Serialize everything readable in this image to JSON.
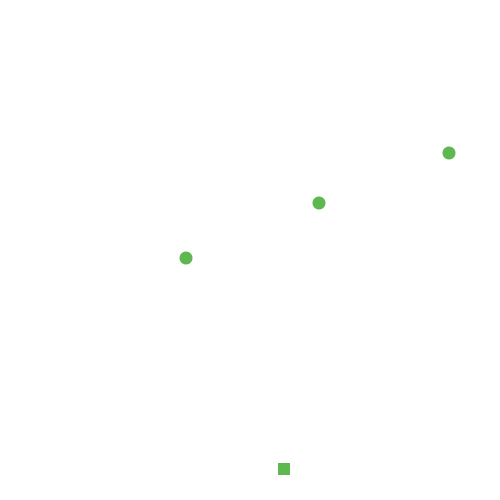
{
  "colors": {
    "background": "#ffffff",
    "marker": "#5cb84f"
  },
  "markers": [
    {
      "shape": "circle"
    },
    {
      "shape": "circle"
    },
    {
      "shape": "circle"
    },
    {
      "shape": "square"
    }
  ]
}
